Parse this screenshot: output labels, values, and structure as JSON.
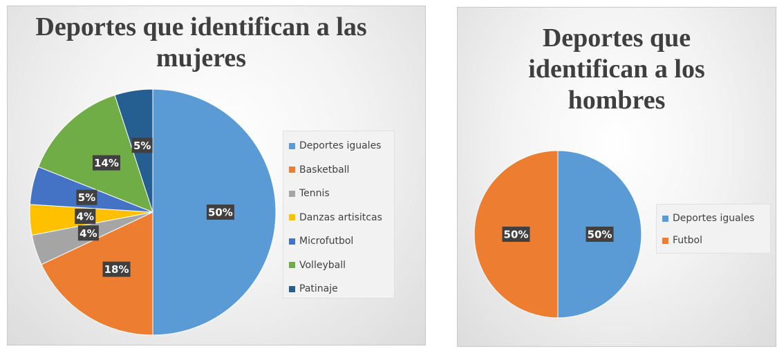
{
  "chart_data": [
    {
      "type": "pie",
      "title": "Deportes que identifican a las mujeres",
      "categories": [
        "Deportes iguales",
        "Basketball",
        "Tennis",
        "Danzas artisitcas",
        "Microfutbol",
        "Volleyball",
        "Patinaje"
      ],
      "values": [
        50,
        18,
        4,
        4,
        5,
        14,
        5
      ],
      "data_labels": [
        "50%",
        "18%",
        "4%",
        "4%",
        "5%",
        "14%",
        "5%"
      ],
      "colors": [
        "#5b9bd5",
        "#ed7d31",
        "#a5a5a5",
        "#ffc000",
        "#4472c4",
        "#70ad47",
        "#255e91"
      ],
      "legend_position": "right"
    },
    {
      "type": "pie",
      "title": "Deportes que identifican a los hombres",
      "categories": [
        "Deportes iguales",
        "Futbol"
      ],
      "values": [
        50,
        50
      ],
      "data_labels": [
        "50%",
        "50%"
      ],
      "colors": [
        "#5b9bd5",
        "#ed7d31"
      ],
      "legend_position": "right"
    }
  ]
}
